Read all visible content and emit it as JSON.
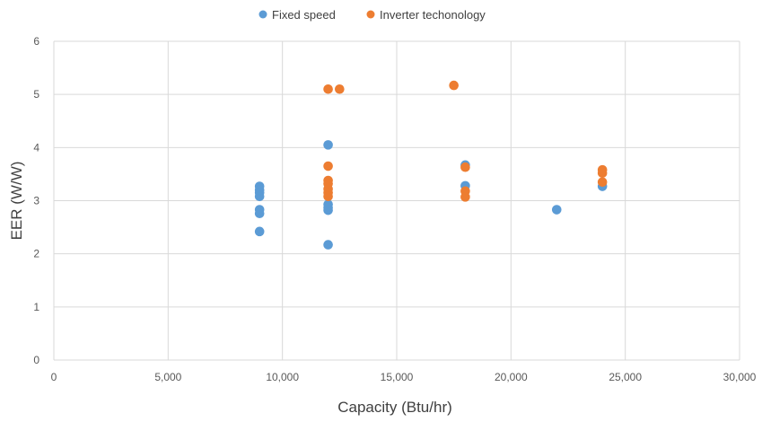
{
  "chart_data": {
    "type": "scatter",
    "title": "",
    "xlabel": "Capacity (Btu/hr)",
    "ylabel": "EER (W/W)",
    "xlim": [
      0,
      30000
    ],
    "ylim": [
      0,
      6
    ],
    "x_ticks": [
      0,
      5000,
      10000,
      15000,
      20000,
      25000,
      30000
    ],
    "x_tick_labels": [
      "0",
      "5,000",
      "10,000",
      "15,000",
      "20,000",
      "25,000",
      "30,000"
    ],
    "y_ticks": [
      0,
      1,
      2,
      3,
      4,
      5,
      6
    ],
    "y_tick_labels": [
      "0",
      "1",
      "2",
      "3",
      "4",
      "5",
      "6"
    ],
    "grid": true,
    "legend_position": "top-center",
    "series": [
      {
        "name": "Fixed speed",
        "color": "#5b9bd5",
        "points": [
          [
            9000,
            3.27
          ],
          [
            9000,
            3.2
          ],
          [
            9000,
            3.15
          ],
          [
            9000,
            3.08
          ],
          [
            9000,
            2.83
          ],
          [
            9000,
            2.76
          ],
          [
            9000,
            2.42
          ],
          [
            12000,
            4.05
          ],
          [
            12000,
            2.93
          ],
          [
            12000,
            2.87
          ],
          [
            12000,
            2.82
          ],
          [
            12000,
            2.17
          ],
          [
            18000,
            3.67
          ],
          [
            18000,
            3.28
          ],
          [
            22000,
            2.83
          ],
          [
            24000,
            3.27
          ]
        ]
      },
      {
        "name": "Inverter techonology",
        "color": "#ed7d31",
        "points": [
          [
            12000,
            5.1
          ],
          [
            12500,
            5.1
          ],
          [
            17500,
            5.17
          ],
          [
            12000,
            3.65
          ],
          [
            12000,
            3.38
          ],
          [
            12000,
            3.32
          ],
          [
            12000,
            3.22
          ],
          [
            12000,
            3.15
          ],
          [
            12000,
            3.08
          ],
          [
            18000,
            3.63
          ],
          [
            18000,
            3.18
          ],
          [
            18000,
            3.07
          ],
          [
            24000,
            3.58
          ],
          [
            24000,
            3.52
          ],
          [
            24000,
            3.35
          ]
        ]
      }
    ]
  }
}
